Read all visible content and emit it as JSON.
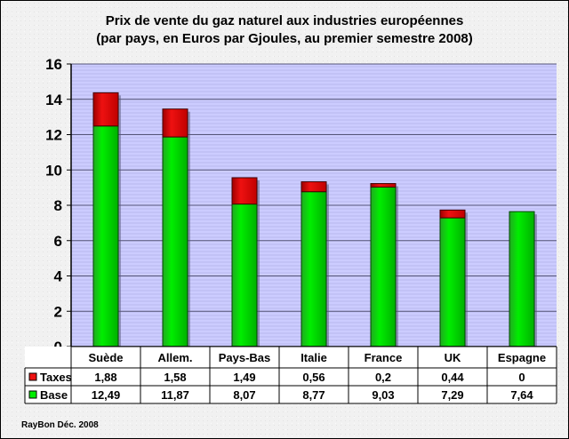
{
  "title_line1": "Prix de vente du gaz naturel aux industries européennes",
  "title_line2": "(par pays, en Euros par Gjoules, au premier semestre 2008)",
  "credit": "RayBon Déc.  2008",
  "colors": {
    "plot_bg": "#ccccff",
    "grid": "#555577",
    "base": "#00ee00",
    "taxes": "#ee1111"
  },
  "chart_data": {
    "type": "bar",
    "stacked": true,
    "title": "Prix de vente du gaz naturel aux industries européennes (par pays, en Euros par Gjoules, au premier semestre 2008)",
    "categories": [
      "Suède",
      "Allem.",
      "Pays-Bas",
      "Italie",
      "France",
      "UK",
      "Espagne"
    ],
    "series": [
      {
        "name": "Base",
        "values": [
          12.49,
          11.87,
          8.07,
          8.77,
          9.03,
          7.29,
          7.64
        ],
        "labels": [
          "12,49",
          "11,87",
          "8,07",
          "8,77",
          "9,03",
          "7,29",
          "7,64"
        ]
      },
      {
        "name": "Taxes",
        "values": [
          1.88,
          1.58,
          1.49,
          0.56,
          0.2,
          0.44,
          0
        ],
        "labels": [
          "1,88",
          "1,58",
          "1,49",
          "0,56",
          "0,2",
          "0,44",
          "0"
        ]
      }
    ],
    "ylim": [
      0,
      16
    ],
    "yticks": [
      0,
      2,
      4,
      6,
      8,
      10,
      12,
      14,
      16
    ],
    "grid": true,
    "legend": "data-table",
    "data_table": true
  }
}
